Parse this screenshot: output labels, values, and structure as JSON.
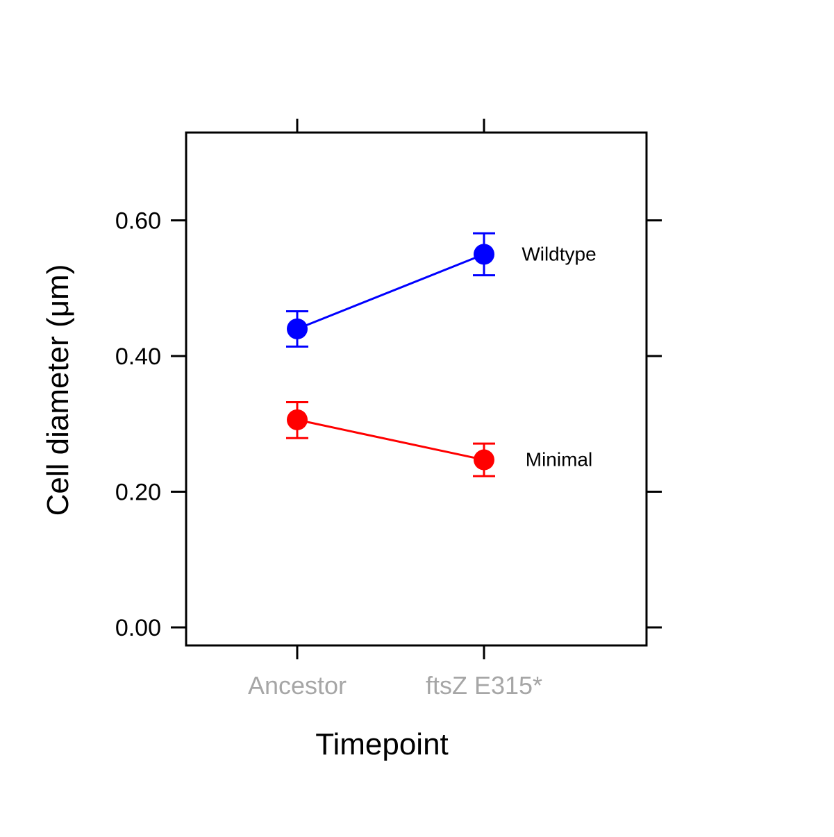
{
  "chart_data": {
    "type": "line",
    "xlabel": "Timepoint",
    "ylabel": "Cell diameter (μm)",
    "categories": [
      "Ancestor",
      "ftsZ E315*"
    ],
    "ylim": [
      -0.028,
      0.73
    ],
    "yticks": [
      0.0,
      0.2,
      0.4,
      0.6
    ],
    "ytick_labels": [
      "0.00",
      "0.20",
      "0.40",
      "0.60"
    ],
    "grid": false,
    "legend": "direct labels at right end of each line",
    "series": [
      {
        "name": "Wildtype",
        "color": "#0000FF",
        "values": [
          0.44,
          0.55
        ],
        "err_low": [
          0.414,
          0.519
        ],
        "err_high": [
          0.466,
          0.581
        ]
      },
      {
        "name": "Minimal",
        "color": "#FF0000",
        "values": [
          0.306,
          0.247
        ],
        "err_low": [
          0.279,
          0.223
        ],
        "err_high": [
          0.332,
          0.271
        ]
      }
    ],
    "colors": {
      "axis": "#000000",
      "x_tick_label": "#A6A6A6"
    }
  }
}
